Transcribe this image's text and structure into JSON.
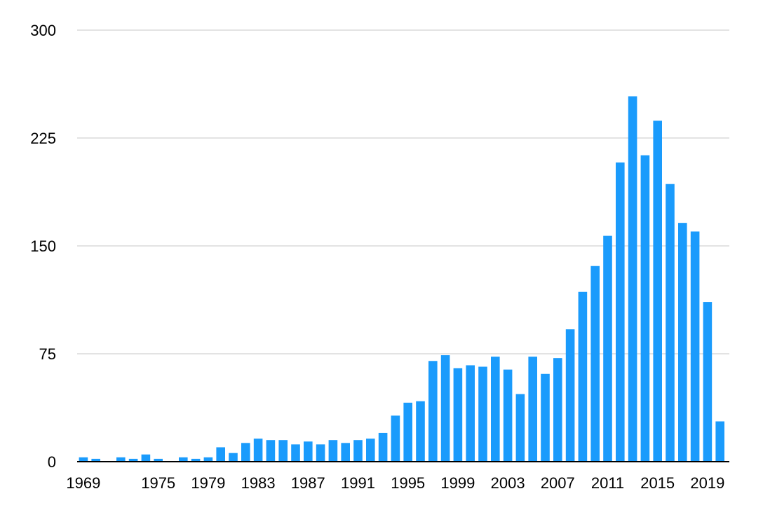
{
  "chart_data": {
    "type": "bar",
    "title": "",
    "xlabel": "",
    "ylabel": "",
    "ylim": [
      0,
      300
    ],
    "yticks": [
      0,
      75,
      150,
      225,
      300
    ],
    "xtick_labels": [
      "1969",
      "1975",
      "1979",
      "1983",
      "1987",
      "1991",
      "1995",
      "1999",
      "2003",
      "2007",
      "2011",
      "2015",
      "2019"
    ],
    "grid": true,
    "legend": "none",
    "bar_color": "#1a9bfc",
    "categories": [
      "1969",
      "1970",
      "1971",
      "1972",
      "1973",
      "1974",
      "1975",
      "1976",
      "1977",
      "1978",
      "1979",
      "1980",
      "1981",
      "1982",
      "1983",
      "1984",
      "1985",
      "1986",
      "1987",
      "1988",
      "1989",
      "1990",
      "1991",
      "1992",
      "1993",
      "1994",
      "1995",
      "1996",
      "1997",
      "1998",
      "1999",
      "2000",
      "2001",
      "2002",
      "2003",
      "2004",
      "2005",
      "2006",
      "2007",
      "2008",
      "2009",
      "2010",
      "2011",
      "2012",
      "2013",
      "2014",
      "2015",
      "2016",
      "2017",
      "2018",
      "2019",
      "2020",
      "2021"
    ],
    "values": [
      3,
      2,
      0,
      3,
      2,
      5,
      2,
      0,
      3,
      2,
      3,
      10,
      6,
      13,
      16,
      15,
      15,
      12,
      14,
      12,
      15,
      13,
      15,
      16,
      20,
      32,
      41,
      42,
      70,
      74,
      65,
      67,
      66,
      73,
      64,
      47,
      73,
      61,
      72,
      92,
      118,
      136,
      157,
      208,
      254,
      213,
      237,
      193,
      166,
      160,
      111,
      28,
      0
    ]
  }
}
